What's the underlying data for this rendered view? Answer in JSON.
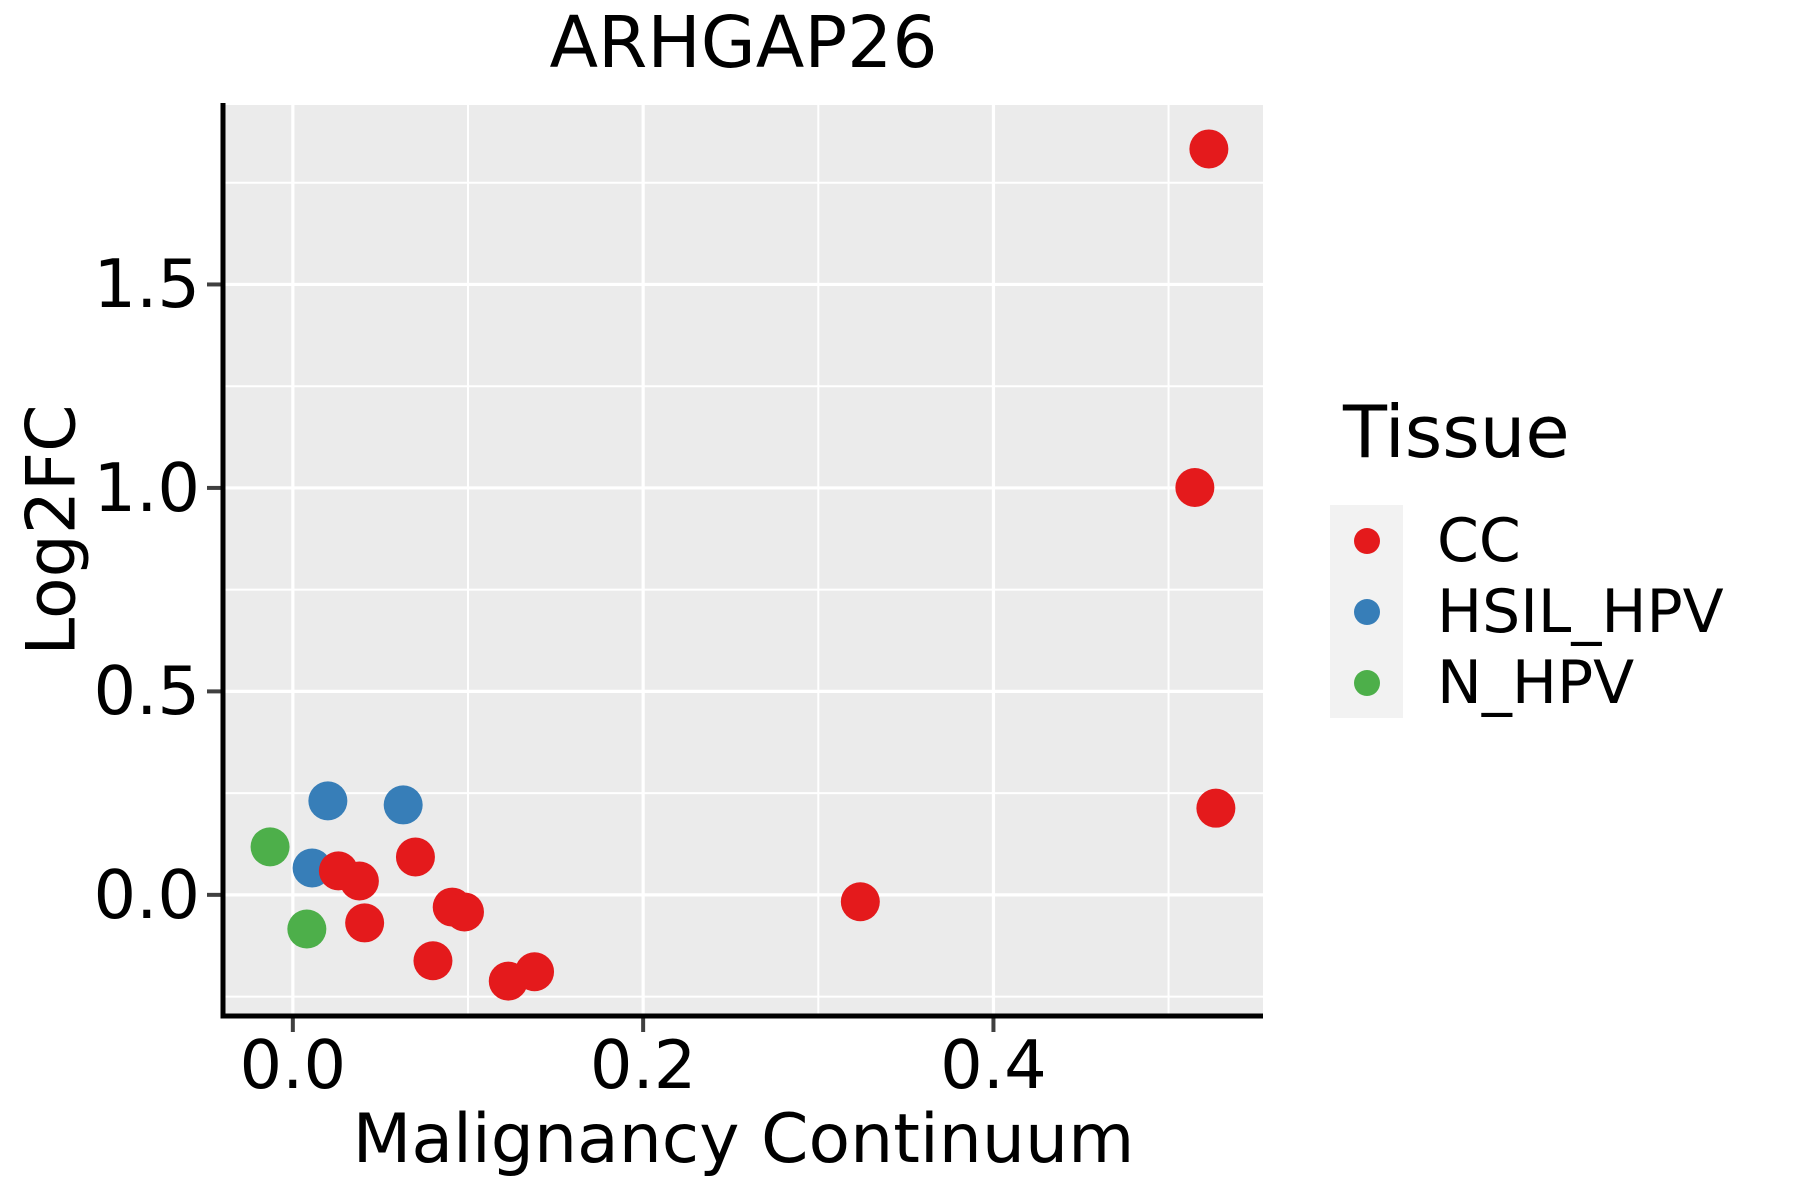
{
  "title": "ARHGAP26",
  "axes": {
    "x": {
      "label": "Malignancy Continuum",
      "tick_labels": [
        "0.0",
        "0.2",
        "0.4"
      ],
      "tick_values": [
        0.0,
        0.2,
        0.4
      ],
      "minor_tick_values": [
        0.1,
        0.3,
        0.5
      ]
    },
    "y": {
      "label": "Log2FC",
      "tick_labels": [
        "0.0",
        "0.5",
        "1.0",
        "1.5"
      ],
      "tick_values": [
        0.0,
        0.5,
        1.0,
        1.5
      ],
      "minor_tick_values": [
        -0.25,
        0.25,
        0.75,
        1.25,
        1.75
      ]
    }
  },
  "legend": {
    "title": "Tissue",
    "entries": [
      {
        "label": "CC",
        "color": "#E41A1C"
      },
      {
        "label": "HSIL_HPV",
        "color": "#377EB8"
      },
      {
        "label": "N_HPV",
        "color": "#4DAF4A"
      }
    ]
  },
  "style": {
    "panel_bg": "#EBEBEB",
    "grid_color": "#FFFFFF",
    "legend_key_bg": "#F2F2F2",
    "spine_color": "#000000",
    "tick_color": "#404040",
    "text_color": "#000000"
  },
  "chart_data": {
    "type": "scatter",
    "title": "ARHGAP26",
    "xlabel": "Malignancy Continuum",
    "ylabel": "Log2FC",
    "xlim": [
      -0.0393,
      0.5539
    ],
    "ylim": [
      -0.2977,
      1.941
    ],
    "grid": "on",
    "legend_title": "Tissue",
    "legend_position": "right",
    "series": [
      {
        "name": "N_HPV",
        "color": "#4DAF4A",
        "points": [
          [
            -0.013,
            0.118
          ],
          [
            0.008,
            -0.084
          ]
        ]
      },
      {
        "name": "HSIL_HPV",
        "color": "#377EB8",
        "points": [
          [
            0.02,
            0.231
          ],
          [
            0.063,
            0.221
          ],
          [
            0.011,
            0.066
          ]
        ]
      },
      {
        "name": "CC",
        "color": "#E41A1C",
        "points": [
          [
            0.026,
            0.059
          ],
          [
            0.038,
            0.034
          ],
          [
            0.07,
            0.093
          ],
          [
            0.041,
            -0.069
          ],
          [
            0.091,
            -0.03
          ],
          [
            0.098,
            -0.042
          ],
          [
            0.08,
            -0.162
          ],
          [
            0.123,
            -0.212
          ],
          [
            0.138,
            -0.189
          ],
          [
            0.324,
            -0.017
          ],
          [
            0.527,
            0.213
          ],
          [
            0.515,
            1.001
          ],
          [
            0.523,
            1.833
          ]
        ]
      }
    ]
  }
}
